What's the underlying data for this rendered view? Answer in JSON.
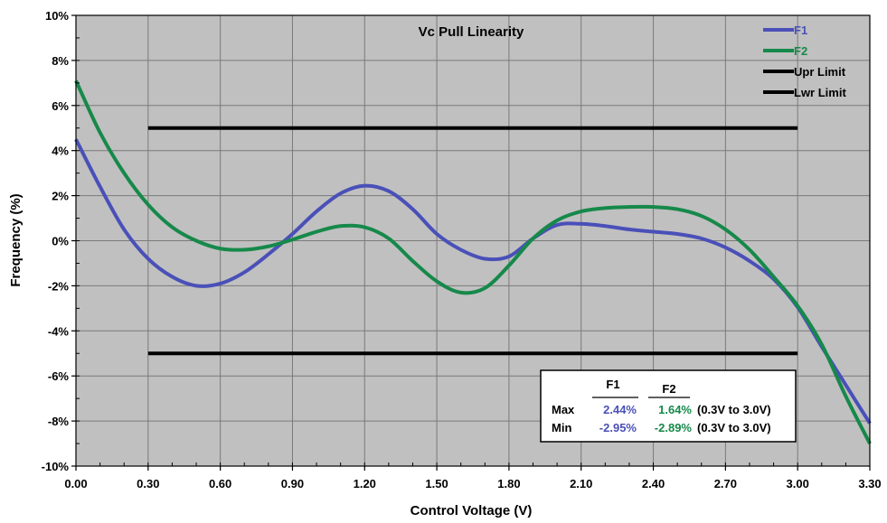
{
  "chart_data": {
    "type": "line",
    "title": "Vc Pull Linearity",
    "xlabel": "Control Voltage (V)",
    "ylabel": "Frequency (%)",
    "xlim": [
      0,
      3.3
    ],
    "ylim": [
      -10,
      10
    ],
    "x_ticks": [
      "0.00",
      "0.30",
      "0.60",
      "0.90",
      "1.20",
      "1.50",
      "1.80",
      "2.10",
      "2.40",
      "2.70",
      "3.00",
      "3.30"
    ],
    "y_ticks": [
      "10%",
      "8%",
      "6%",
      "4%",
      "2%",
      "0%",
      "-2%",
      "-4%",
      "-6%",
      "-8%",
      "-10%"
    ],
    "grid": true,
    "legend_position": "top-right",
    "series": [
      {
        "name": "F1",
        "color": "#4a50b8",
        "x": [
          0.0,
          0.1,
          0.2,
          0.3,
          0.4,
          0.5,
          0.6,
          0.7,
          0.8,
          0.9,
          1.0,
          1.1,
          1.2,
          1.3,
          1.4,
          1.5,
          1.6,
          1.7,
          1.8,
          1.9,
          2.0,
          2.1,
          2.2,
          2.3,
          2.4,
          2.5,
          2.6,
          2.7,
          2.8,
          2.9,
          3.0,
          3.1,
          3.2,
          3.3
        ],
        "values": [
          4.5,
          2.4,
          0.5,
          -0.8,
          -1.6,
          -2.0,
          -1.9,
          -1.4,
          -0.6,
          0.3,
          1.3,
          2.1,
          2.44,
          2.2,
          1.4,
          0.3,
          -0.4,
          -0.8,
          -0.7,
          0.1,
          0.7,
          0.75,
          0.65,
          0.5,
          0.4,
          0.3,
          0.1,
          -0.3,
          -0.9,
          -1.7,
          -2.95,
          -4.7,
          -6.4,
          -8.1
        ]
      },
      {
        "name": "F2",
        "color": "#16894a",
        "x": [
          0.0,
          0.1,
          0.2,
          0.3,
          0.4,
          0.5,
          0.6,
          0.7,
          0.8,
          0.9,
          1.0,
          1.1,
          1.2,
          1.3,
          1.4,
          1.5,
          1.6,
          1.7,
          1.8,
          1.9,
          2.0,
          2.1,
          2.2,
          2.3,
          2.4,
          2.5,
          2.6,
          2.7,
          2.8,
          2.9,
          3.0,
          3.1,
          3.2,
          3.3
        ],
        "values": [
          7.1,
          4.8,
          3.0,
          1.6,
          0.6,
          0.0,
          -0.35,
          -0.4,
          -0.25,
          0.05,
          0.4,
          0.65,
          0.6,
          0.1,
          -0.9,
          -1.8,
          -2.3,
          -2.1,
          -1.1,
          0.1,
          0.9,
          1.3,
          1.45,
          1.5,
          1.5,
          1.4,
          1.1,
          0.5,
          -0.4,
          -1.6,
          -2.89,
          -4.6,
          -6.9,
          -9.0
        ]
      },
      {
        "name": "Upr Limit",
        "color": "#000000",
        "x": [
          0.3,
          3.0
        ],
        "values": [
          5,
          5
        ]
      },
      {
        "name": "Lwr Limit",
        "color": "#000000",
        "x": [
          0.3,
          3.0
        ],
        "values": [
          -5,
          -5
        ]
      }
    ],
    "stats_box": {
      "headers": [
        "F1",
        "F2"
      ],
      "rows": [
        {
          "label": "Max",
          "f1": "2.44%",
          "f2": "1.64%",
          "range": "(0.3V to 3.0V)"
        },
        {
          "label": "Min",
          "f1": "-2.95%",
          "f2": "-2.89%",
          "range": "(0.3V to 3.0V)"
        }
      ]
    }
  }
}
